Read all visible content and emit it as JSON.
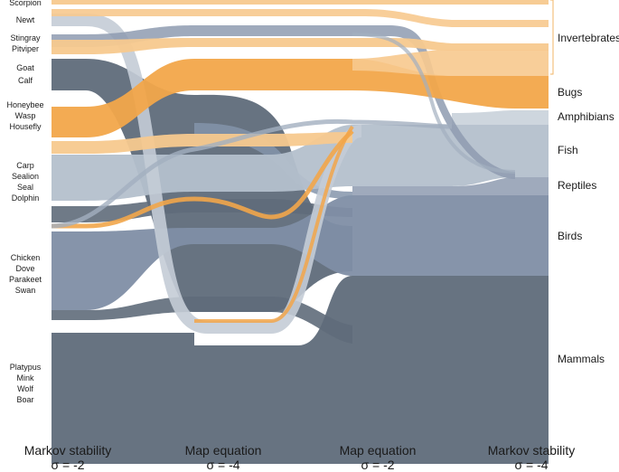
{
  "left_labels": [
    {
      "id": "scorpion",
      "text": "Scorpion"
    },
    {
      "id": "newt",
      "text": "Newt"
    },
    {
      "id": "stingray",
      "text": "Stingray"
    },
    {
      "id": "pitviper",
      "text": "Pitviper"
    },
    {
      "id": "goat",
      "text": "Goat"
    },
    {
      "id": "calf",
      "text": "Calf"
    },
    {
      "id": "honeybee",
      "text": "Honeybee"
    },
    {
      "id": "wasp",
      "text": "Wasp"
    },
    {
      "id": "housefly",
      "text": "Housefly"
    },
    {
      "id": "carp",
      "text": "Carp"
    },
    {
      "id": "sealion",
      "text": "Sealion"
    },
    {
      "id": "seal",
      "text": "Seal"
    },
    {
      "id": "dolphin",
      "text": "Dolphin"
    },
    {
      "id": "chicken",
      "text": "Chicken"
    },
    {
      "id": "dove",
      "text": "Dove"
    },
    {
      "id": "parakeet",
      "text": "Parakeet"
    },
    {
      "id": "swan",
      "text": "Swan"
    },
    {
      "id": "platypus",
      "text": "Platypus"
    },
    {
      "id": "mink",
      "text": "Mink"
    },
    {
      "id": "wolf",
      "text": "Wolf"
    },
    {
      "id": "boar",
      "text": "Boar"
    }
  ],
  "right_labels": [
    {
      "id": "invertebrates",
      "text": "Invertebrates"
    },
    {
      "id": "bugs",
      "text": "Bugs"
    },
    {
      "id": "amphibians",
      "text": "Amphibians"
    },
    {
      "id": "fish",
      "text": "Fish"
    },
    {
      "id": "reptiles",
      "text": "Reptiles"
    },
    {
      "id": "birds",
      "text": "Birds"
    },
    {
      "id": "mammals",
      "text": "Mammals"
    }
  ],
  "axes": [
    {
      "id": "markov-2",
      "title": "Markov stability",
      "sigma": "σ = -2"
    },
    {
      "id": "mapeq-4",
      "title": "Map equation",
      "sigma": "σ = -4"
    },
    {
      "id": "mapeq-2",
      "title": "Map equation",
      "sigma": "σ = -2"
    },
    {
      "id": "markov-4",
      "title": "Markov stability",
      "sigma": "σ = -4"
    }
  ],
  "colors": {
    "mammals": "#5f6b7a",
    "birds": "#7f8ea5",
    "fish": "#b4c0cc",
    "amphibians": "#c9d2da",
    "bugs": "#f2a64a",
    "invertebrates": "#f7c98e",
    "bracket": "#f2b466"
  }
}
